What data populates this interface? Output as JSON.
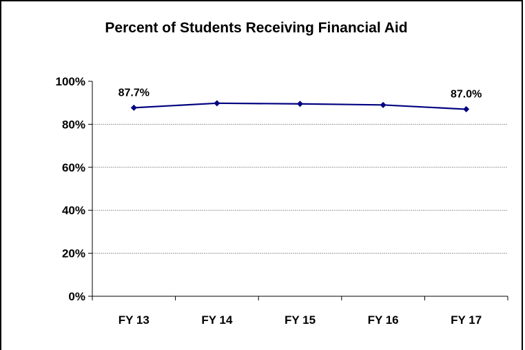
{
  "chart_data": {
    "type": "line",
    "title": "Percent of Students Receiving Financial Aid",
    "xlabel": "",
    "ylabel": "",
    "categories": [
      "FY 13",
      "FY 14",
      "FY 15",
      "FY 16",
      "FY 17"
    ],
    "series": [
      {
        "values": [
          87.7,
          89.8,
          89.5,
          89.0,
          87.0
        ],
        "color": "#000080"
      }
    ],
    "data_labels": [
      {
        "index": 0,
        "text": "87.7%"
      },
      {
        "index": 4,
        "text": "87.0%"
      }
    ],
    "ylim": [
      0,
      100
    ],
    "yticks": [
      0,
      20,
      40,
      60,
      80,
      100
    ],
    "ytick_labels": [
      "0%",
      "20%",
      "40%",
      "60%",
      "80%",
      "100%"
    ],
    "grid": true,
    "legend": "none"
  }
}
